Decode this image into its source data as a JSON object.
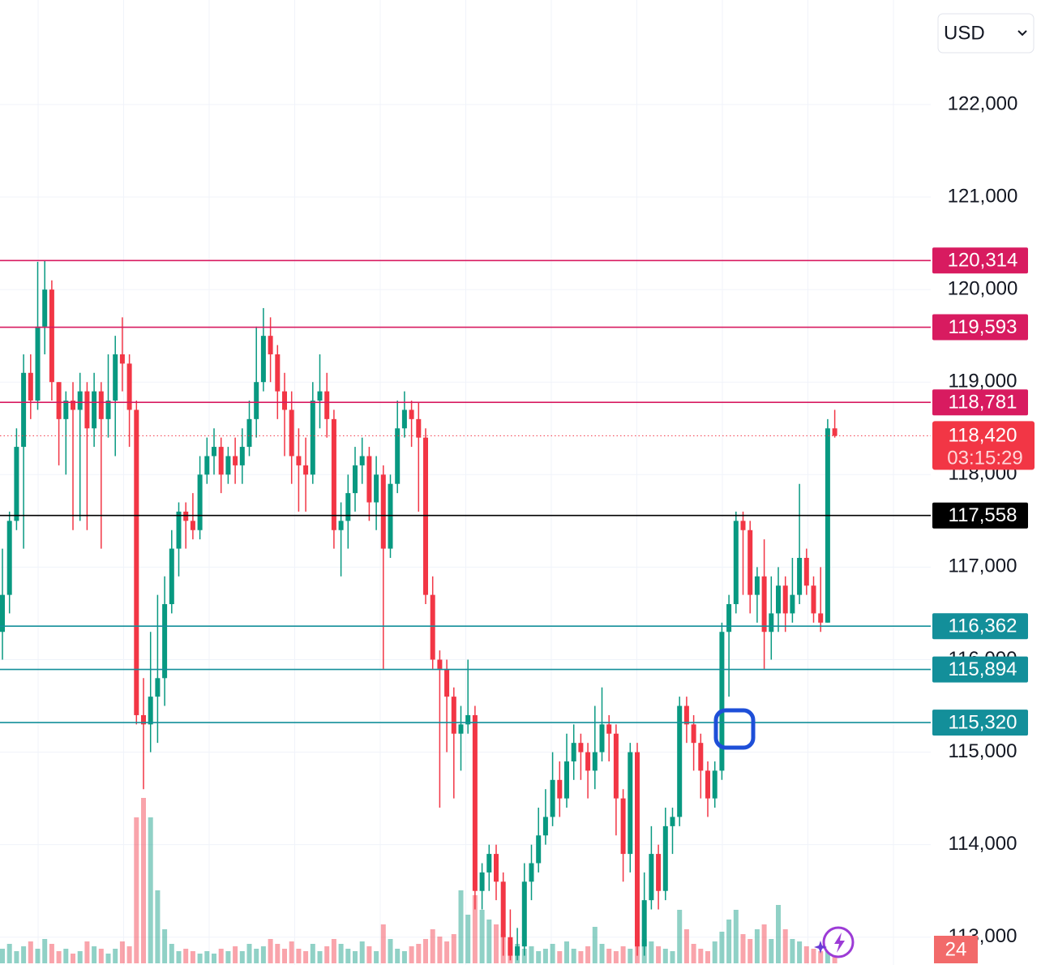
{
  "chart_data": {
    "type": "candlestick",
    "currency": "USD",
    "ylim": [
      112700,
      123130
    ],
    "yticks": [
      {
        "value": 122000,
        "label": "122,000"
      },
      {
        "value": 121000,
        "label": "121,000"
      },
      {
        "value": 120000,
        "label": "120,000"
      },
      {
        "value": 119000,
        "label": "119,000"
      },
      {
        "value": 118000,
        "label": "118,000"
      },
      {
        "value": 117000,
        "label": "117,000"
      },
      {
        "value": 116000,
        "label": "116,000"
      },
      {
        "value": 115000,
        "label": "115,000"
      },
      {
        "value": 114000,
        "label": "114,000"
      },
      {
        "value": 113000,
        "label": "113,000"
      }
    ],
    "grid": true,
    "up_color": "#089981",
    "down_color": "#f23645",
    "open": [
      116300,
      116700,
      117500,
      118300,
      119100,
      118800,
      119600,
      120000,
      119000,
      118600,
      118800,
      118700,
      118900,
      118500,
      118900,
      118600,
      118800,
      119300,
      119200,
      118700,
      115400,
      115300,
      115600,
      115800,
      116600,
      117200,
      117600,
      117500,
      117400,
      118000,
      118200,
      118300,
      118000,
      118200,
      118100,
      118300,
      118600,
      119000,
      119500,
      119300,
      118900,
      118700,
      118200,
      118100,
      118000,
      118800,
      118900,
      118600,
      117400,
      117500,
      117800,
      118100,
      118200,
      117700,
      118000,
      117200,
      117900,
      118500,
      118700,
      118600,
      118400,
      116700,
      116000,
      115900,
      115600,
      115200,
      115300,
      115400,
      113500,
      113700,
      113900,
      113600,
      113000,
      112800,
      112900,
      113600,
      113800,
      114100,
      114300,
      114700,
      114500,
      114900,
      115100,
      115000,
      114800,
      115000,
      115300,
      115200,
      114500,
      113900,
      115000,
      112900,
      113400,
      113900,
      113500,
      114200,
      114300,
      115500,
      115300,
      115100,
      114800,
      114500,
      114800,
      116300,
      116600,
      117500,
      117400,
      116700,
      116900,
      116300,
      116500,
      116800,
      116500,
      116700,
      117100,
      116800,
      116500,
      116400,
      118500
    ],
    "high": [
      117200,
      117600,
      118500,
      119300,
      119300,
      120300,
      120314,
      120100,
      119000,
      118900,
      119000,
      119100,
      119000,
      119100,
      119000,
      119300,
      119500,
      119700,
      119300,
      118800,
      115800,
      116300,
      116700,
      116900,
      117400,
      117700,
      117700,
      117800,
      118200,
      118400,
      118500,
      118400,
      118300,
      118400,
      118500,
      118800,
      119600,
      119800,
      119700,
      119400,
      119100,
      118900,
      118500,
      118400,
      119000,
      119300,
      119100,
      118700,
      117700,
      118000,
      118300,
      118400,
      118300,
      118200,
      118100,
      118000,
      118800,
      118900,
      118800,
      118781,
      118500,
      116900,
      116100,
      116000,
      115700,
      115500,
      116000,
      115500,
      113800,
      114000,
      114000,
      113700,
      113300,
      113100,
      113800,
      114000,
      114400,
      114600,
      115000,
      114900,
      115200,
      115300,
      115200,
      115100,
      115500,
      115700,
      115400,
      115300,
      114600,
      115100,
      115100,
      113700,
      114200,
      114000,
      114400,
      114400,
      115600,
      115600,
      115400,
      115200,
      114900,
      114900,
      116400,
      116700,
      117600,
      117600,
      117500,
      117000,
      117300,
      116900,
      117000,
      116900,
      117100,
      117900,
      117200,
      116900,
      117000,
      118600,
      118700
    ],
    "low": [
      116000,
      116500,
      117400,
      117200,
      118600,
      118700,
      119300,
      118800,
      118100,
      118000,
      117400,
      117500,
      117400,
      118300,
      117200,
      118400,
      118200,
      118900,
      118300,
      115300,
      114600,
      115000,
      115100,
      115500,
      116500,
      116900,
      117200,
      117300,
      117300,
      117900,
      118000,
      117800,
      117900,
      117900,
      117900,
      118200,
      118400,
      118900,
      119000,
      118600,
      118200,
      117900,
      117600,
      117600,
      117900,
      118500,
      118400,
      117200,
      116900,
      117200,
      117600,
      117900,
      117500,
      117400,
      115900,
      117100,
      117800,
      118400,
      118300,
      117600,
      116600,
      115900,
      114400,
      115000,
      114500,
      114800,
      115200,
      113300,
      113300,
      113500,
      113400,
      112800,
      112750,
      112750,
      112800,
      113400,
      113700,
      114000,
      114200,
      114300,
      114400,
      114700,
      114700,
      114500,
      114600,
      114900,
      114900,
      114100,
      113600,
      113700,
      112800,
      112800,
      113300,
      113300,
      113400,
      113900,
      114200,
      115100,
      114800,
      114500,
      114300,
      114400,
      114700,
      115600,
      116500,
      116700,
      116500,
      116400,
      115900,
      116000,
      116300,
      116300,
      116400,
      116600,
      116700,
      116400,
      116300,
      116400,
      118400
    ],
    "close": [
      116700,
      117500,
      118300,
      119100,
      118800,
      119600,
      120000,
      119000,
      118600,
      118800,
      118700,
      118900,
      118500,
      118900,
      118600,
      118800,
      119300,
      119200,
      118700,
      115400,
      115300,
      115600,
      115800,
      116600,
      117200,
      117600,
      117500,
      117400,
      118000,
      118200,
      118300,
      118000,
      118200,
      118100,
      118300,
      118600,
      119000,
      119500,
      119300,
      118900,
      118700,
      118200,
      118100,
      118000,
      118800,
      118900,
      118600,
      117400,
      117500,
      117800,
      118100,
      118200,
      117700,
      118000,
      117200,
      117900,
      118500,
      118700,
      118600,
      118400,
      116700,
      116000,
      115900,
      115600,
      115200,
      115300,
      115400,
      113500,
      113700,
      113900,
      113600,
      113000,
      112800,
      112900,
      113600,
      113800,
      114100,
      114300,
      114700,
      114500,
      114900,
      115100,
      115000,
      114800,
      115000,
      115300,
      115200,
      114500,
      113900,
      115000,
      112900,
      113400,
      113900,
      113500,
      114200,
      114300,
      115500,
      115300,
      115100,
      114800,
      114500,
      114800,
      116300,
      116600,
      117500,
      117400,
      116700,
      116900,
      116300,
      116500,
      116800,
      116500,
      116700,
      117100,
      116800,
      116500,
      116400,
      118500,
      118420
    ],
    "volume": [
      6,
      8,
      5,
      7,
      9,
      6,
      10,
      8,
      5,
      6,
      4,
      5,
      9,
      7,
      6,
      4,
      6,
      9,
      7,
      60,
      68,
      60,
      30,
      14,
      8,
      5,
      6,
      5,
      4,
      5,
      4,
      6,
      5,
      7,
      5,
      8,
      6,
      7,
      10,
      8,
      6,
      9,
      6,
      5,
      8,
      5,
      7,
      10,
      8,
      6,
      5,
      9,
      7,
      5,
      16,
      10,
      6,
      5,
      7,
      8,
      10,
      14,
      11,
      9,
      12,
      30,
      20,
      28,
      22,
      18,
      16,
      12,
      9,
      8,
      6,
      7,
      5,
      6,
      8,
      5,
      9,
      6,
      5,
      7,
      15,
      8,
      6,
      5,
      7,
      6,
      8,
      10,
      9,
      7,
      6,
      5,
      22,
      14,
      8,
      6,
      5,
      9,
      13,
      18,
      22,
      12,
      10,
      14,
      16,
      10,
      24,
      14,
      10,
      9,
      7,
      6,
      5,
      5,
      3
    ],
    "vlim": [
      0,
      100
    ],
    "levels": [
      {
        "value": 120314,
        "label": "120,314",
        "color": "#d81b60"
      },
      {
        "value": 119593,
        "label": "119,593",
        "color": "#d81b60"
      },
      {
        "value": 118781,
        "label": "118,781",
        "color": "#d81b60"
      },
      {
        "value": 117558,
        "label": "117,558",
        "color": "#000000"
      },
      {
        "value": 116362,
        "label": "116,362",
        "color": "#138f9a"
      },
      {
        "value": 115894,
        "label": "115,894",
        "color": "#138f9a"
      },
      {
        "value": 115320,
        "label": "115,320",
        "color": "#138f9a"
      }
    ],
    "last_price": {
      "value": 118420,
      "label": "118,420",
      "countdown": "03:15:29",
      "color": "#f23645"
    },
    "badge": "24"
  }
}
